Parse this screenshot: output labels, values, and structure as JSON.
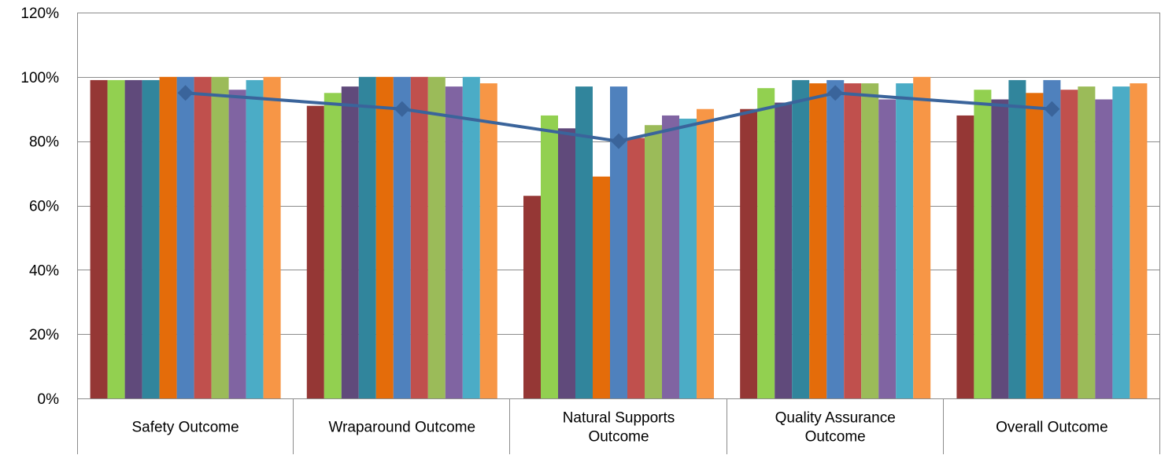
{
  "chart_data": {
    "type": "bar",
    "title": "",
    "xlabel": "",
    "ylabel": "",
    "ylim": [
      0,
      1.2
    ],
    "yticks": [
      0,
      0.2,
      0.4,
      0.6,
      0.8,
      1.0,
      1.2
    ],
    "ytick_labels": [
      "0%",
      "20%",
      "40%",
      "60%",
      "80%",
      "100%",
      "120%"
    ],
    "grid": true,
    "legend": "none",
    "categories": [
      [
        "Safety Outcome"
      ],
      [
        "Wraparound Outcome"
      ],
      [
        "Natural Supports",
        "Outcome"
      ],
      [
        "Quality Assurance",
        "Outcome"
      ],
      [
        "Overall Outcome"
      ]
    ],
    "series": [
      {
        "color": "#953735",
        "values": [
          0.99,
          0.91,
          0.63,
          0.9,
          0.88
        ]
      },
      {
        "color": "#92d050",
        "values": [
          0.99,
          0.95,
          0.88,
          0.965,
          0.96
        ]
      },
      {
        "color": "#604a7b",
        "values": [
          0.99,
          0.97,
          0.84,
          0.92,
          0.93
        ]
      },
      {
        "color": "#31859c",
        "values": [
          0.99,
          1.0,
          0.97,
          0.99,
          0.99
        ]
      },
      {
        "color": "#e46c0a",
        "values": [
          1.0,
          1.0,
          0.69,
          0.98,
          0.95
        ]
      },
      {
        "color": "#4f81bd",
        "values": [
          1.0,
          1.0,
          0.97,
          0.99,
          0.99
        ]
      },
      {
        "color": "#c0504d",
        "values": [
          1.0,
          1.0,
          0.81,
          0.98,
          0.96
        ]
      },
      {
        "color": "#9bbb59",
        "values": [
          1.0,
          1.0,
          0.85,
          0.98,
          0.97
        ]
      },
      {
        "color": "#8064a2",
        "values": [
          0.96,
          0.97,
          0.88,
          0.93,
          0.93
        ]
      },
      {
        "color": "#4bacc6",
        "values": [
          0.99,
          1.0,
          0.87,
          0.98,
          0.97
        ]
      },
      {
        "color": "#f79646",
        "values": [
          1.0,
          0.98,
          0.9,
          1.0,
          0.98
        ]
      }
    ],
    "line_series": {
      "color": "#3a649b",
      "marker": "diamond",
      "values": [
        0.95,
        0.9,
        0.8,
        0.95,
        0.9
      ]
    }
  }
}
